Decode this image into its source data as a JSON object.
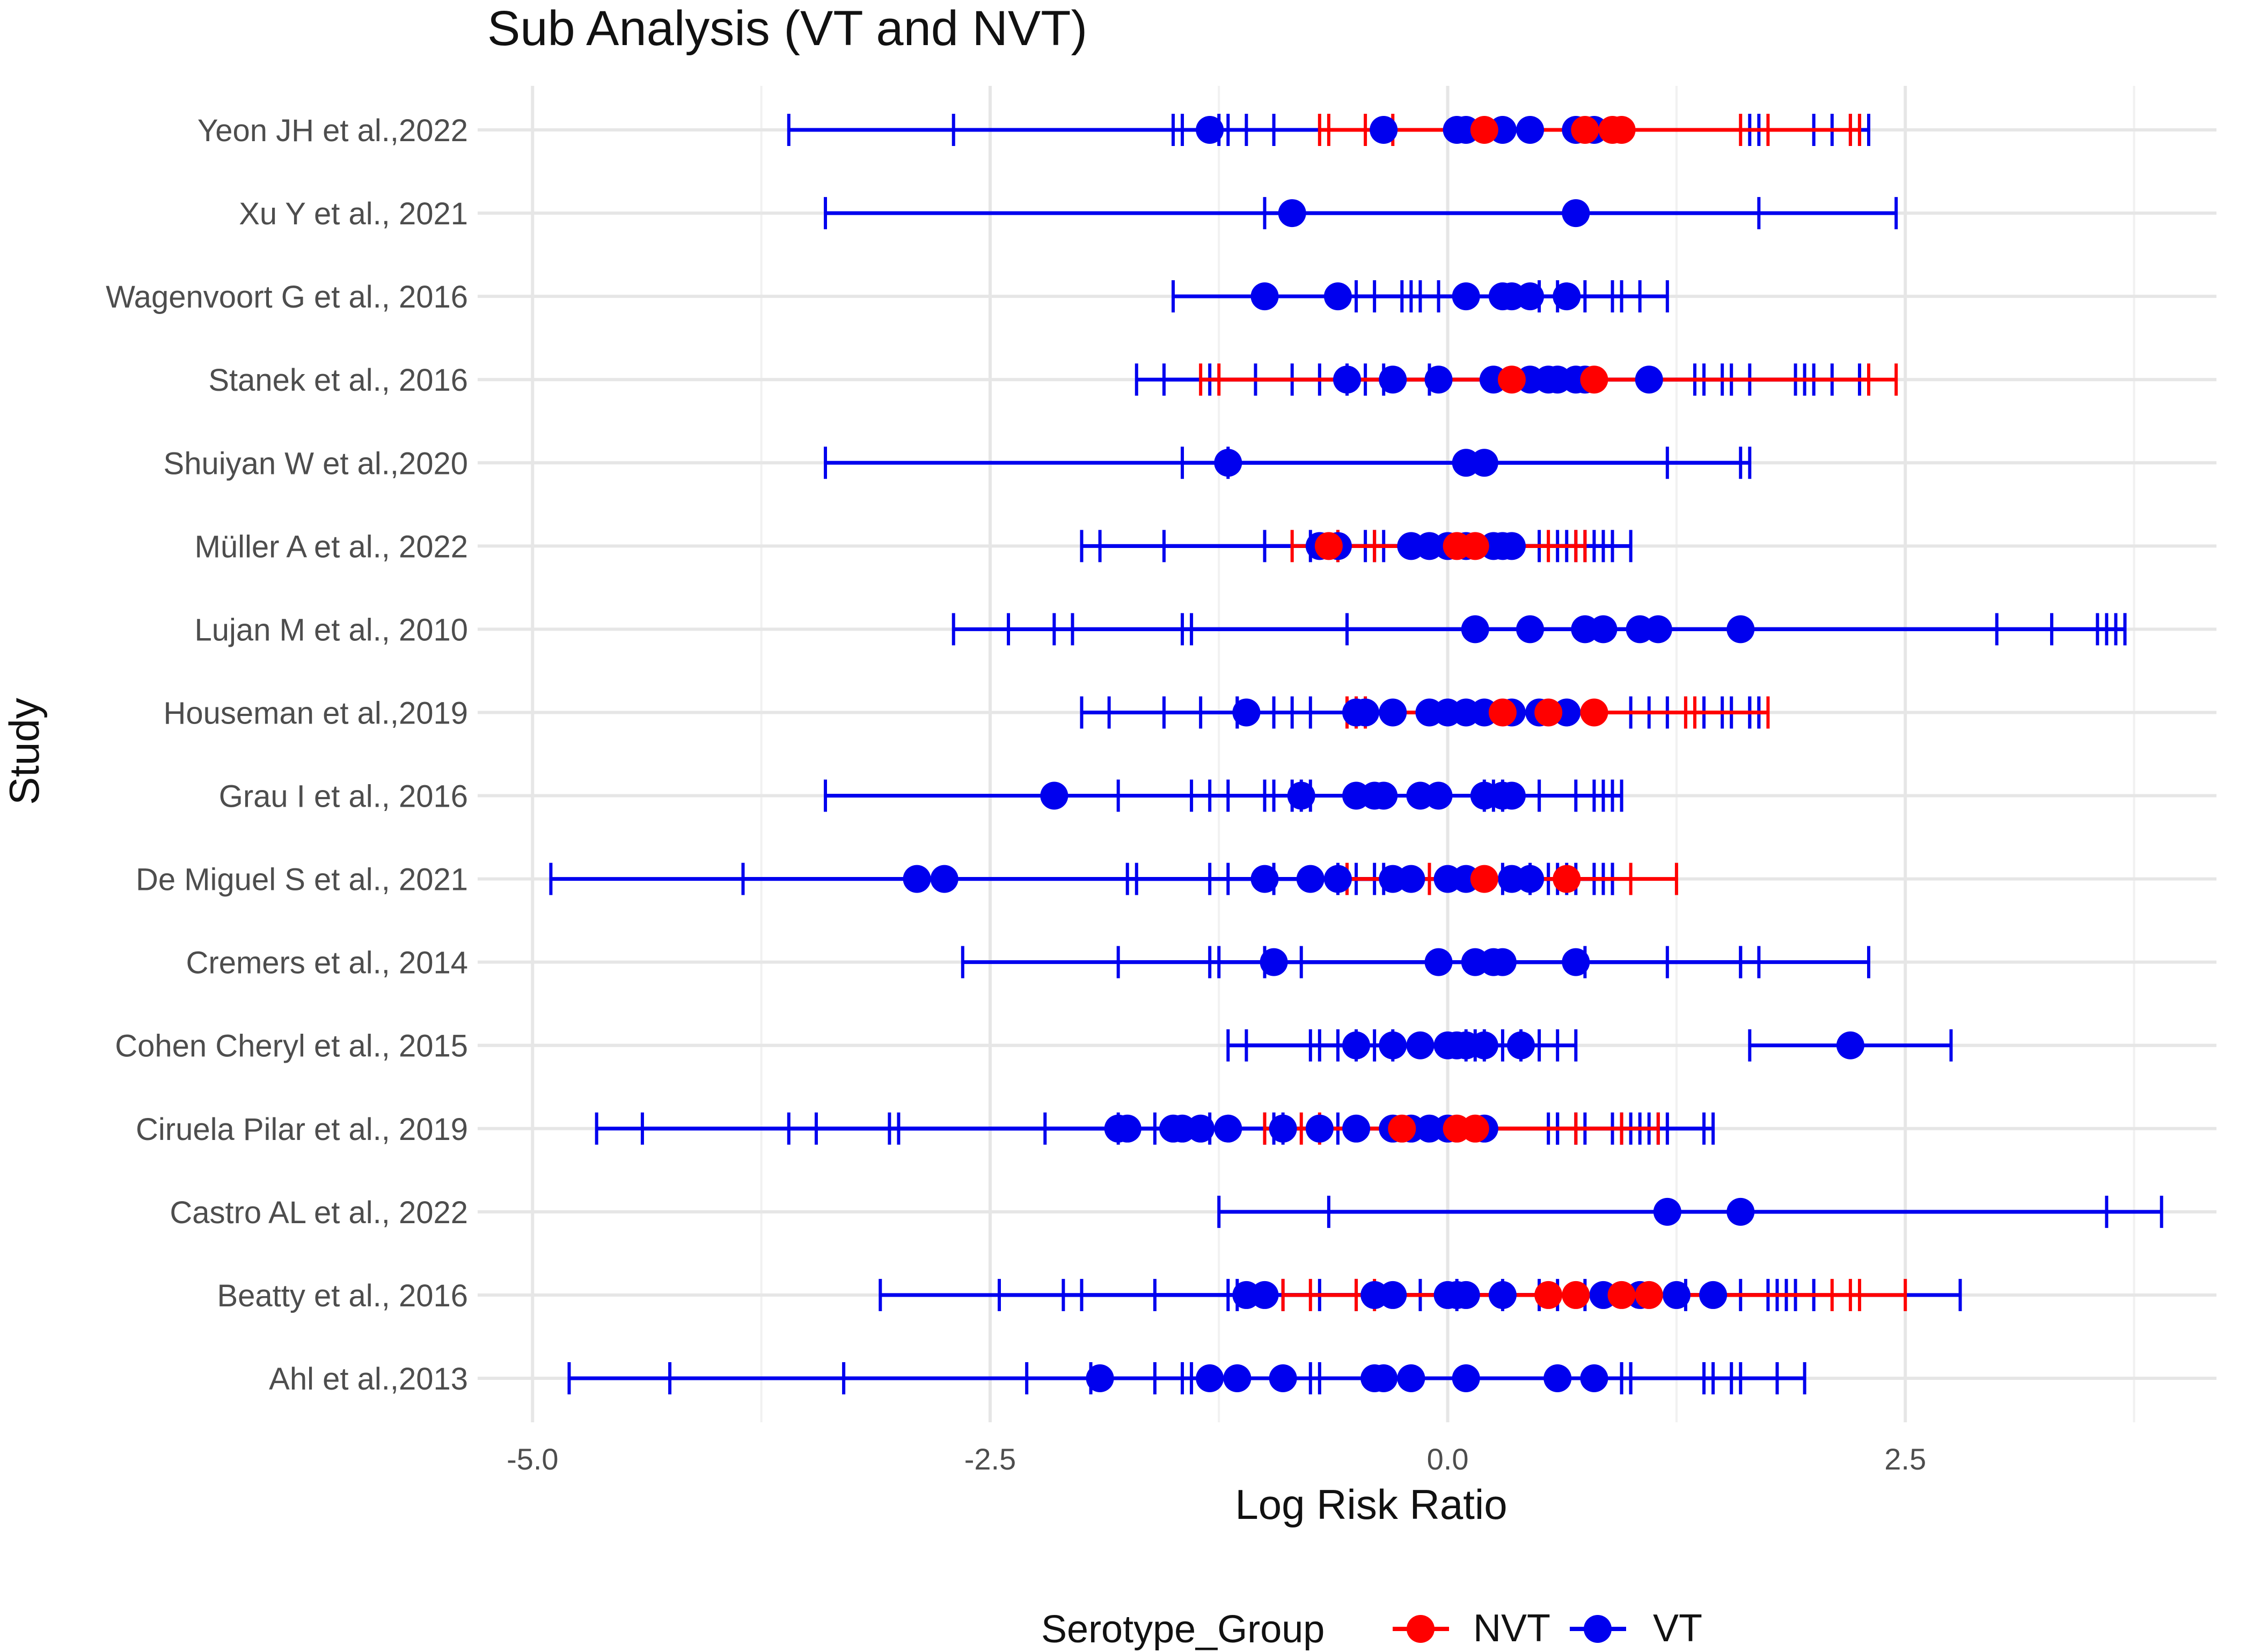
{
  "chart_data": {
    "type": "forest",
    "title": "Sub Analysis (VT and NVT)",
    "xlabel": "Log Risk Ratio",
    "ylabel": "Study",
    "xlim": [
      -5.3,
      4.2
    ],
    "x_ticks": [
      -5.0,
      -2.5,
      0.0,
      2.5
    ],
    "x_tick_labels": [
      "-5.0",
      "-2.5",
      "0.0",
      "2.5"
    ],
    "grid": true,
    "legend": {
      "title": "Serotype_Group",
      "position": "bottom",
      "entries": [
        {
          "label": "NVT",
          "color": "#ff0000"
        },
        {
          "label": "VT",
          "color": "#0000ee"
        }
      ]
    },
    "studies": [
      {
        "label": "Ahl et al.,2013",
        "VT": [
          [
            -1.9,
            -4.8,
            1.0
          ],
          [
            -1.3,
            -4.25,
            0.95
          ],
          [
            -1.15,
            -3.3,
            1.45
          ],
          [
            -0.9,
            -2.3,
            1.6
          ],
          [
            -0.4,
            -1.95,
            1.8
          ],
          [
            -0.35,
            -1.6,
            1.95
          ],
          [
            -0.2,
            -1.45,
            1.55
          ],
          [
            0.1,
            -1.4,
            1.4
          ],
          [
            0.6,
            -0.7,
            0.95
          ],
          [
            0.8,
            -0.75,
            1.0
          ]
        ]
      },
      {
        "label": "Beatty et al., 2016",
        "VT": [
          [
            -1.1,
            -3.1,
            0.5
          ],
          [
            -1.0,
            -2.45,
            0.3
          ],
          [
            -0.4,
            -2.1,
            0.6
          ],
          [
            -0.3,
            -2.0,
            0.75
          ],
          [
            0.0,
            -1.6,
            1.6
          ],
          [
            0.05,
            -1.2,
            1.75
          ],
          [
            0.1,
            -1.15,
            1.3
          ],
          [
            0.3,
            -0.9,
            1.8
          ],
          [
            0.85,
            -0.7,
            1.85
          ],
          [
            1.05,
            -0.5,
            1.9
          ],
          [
            1.25,
            -0.15,
            2.0
          ],
          [
            1.45,
            0.05,
            2.8
          ]
        ],
        "NVT": [
          [
            0.55,
            -0.75,
            2.5
          ],
          [
            0.7,
            -0.9,
            2.1
          ],
          [
            0.95,
            -0.5,
            2.25
          ],
          [
            1.1,
            -0.4,
            2.2
          ]
        ]
      },
      {
        "label": "Castro AL et al., 2022",
        "VT": [
          [
            1.2,
            -0.65,
            3.6
          ],
          [
            1.6,
            -1.25,
            3.9
          ]
        ]
      },
      {
        "label": "Ciruela Pilar et al., 2019",
        "VT": [
          [
            -1.8,
            -4.65,
            0.6
          ],
          [
            -1.75,
            -4.4,
            0.75
          ],
          [
            -1.5,
            -3.6,
            0.95
          ],
          [
            -1.45,
            -3.45,
            1.0
          ],
          [
            -1.35,
            -3.05,
            1.1
          ],
          [
            -1.2,
            -3.0,
            1.15
          ],
          [
            -0.9,
            -2.2,
            1.4
          ],
          [
            -0.7,
            -1.8,
            1.45
          ],
          [
            -0.5,
            -1.6,
            1.2
          ],
          [
            -0.3,
            -1.3,
            1.05
          ],
          [
            -0.2,
            -1.0,
            0.9
          ],
          [
            -0.1,
            -0.95,
            0.7
          ],
          [
            0.0,
            -0.9,
            0.6
          ],
          [
            0.2,
            -0.6,
            0.55
          ]
        ],
        "NVT": [
          [
            -0.25,
            -1.0,
            0.7
          ],
          [
            0.05,
            -0.8,
            0.95
          ],
          [
            0.15,
            -0.7,
            1.15
          ]
        ]
      },
      {
        "label": "Cohen Cheryl et al., 2015",
        "VT": [
          [
            -0.5,
            -1.2,
            0.1
          ],
          [
            -0.3,
            -1.1,
            0.15
          ],
          [
            -0.15,
            -0.75,
            0.2
          ],
          [
            0.0,
            -0.7,
            0.3
          ],
          [
            0.05,
            -0.6,
            0.4
          ],
          [
            0.1,
            -0.5,
            0.5
          ],
          [
            0.2,
            -0.4,
            0.6
          ],
          [
            0.4,
            -0.3,
            0.7
          ],
          [
            2.2,
            1.65,
            2.75
          ]
        ]
      },
      {
        "label": "Cremers et al., 2014",
        "VT": [
          [
            -0.95,
            -2.65,
            0.75
          ],
          [
            -0.05,
            -1.8,
            1.2
          ],
          [
            0.15,
            -1.3,
            1.6
          ],
          [
            0.25,
            -1.25,
            1.7
          ],
          [
            0.3,
            -1.0,
            2.3
          ],
          [
            0.7,
            -0.8,
            1.6
          ]
        ]
      },
      {
        "label": "De Miguel S et al., 2021",
        "VT": [
          [
            -2.9,
            -4.9,
            0.3
          ],
          [
            -2.75,
            -3.85,
            0.45
          ],
          [
            -1.0,
            -1.75,
            0.8
          ],
          [
            -0.75,
            -1.7,
            0.9
          ],
          [
            -0.6,
            -1.3,
            0.9
          ],
          [
            -0.3,
            -1.2,
            0.85
          ],
          [
            -0.2,
            -0.95,
            0.7
          ],
          [
            0.0,
            -0.6,
            0.55
          ],
          [
            0.1,
            -0.5,
            0.6
          ],
          [
            0.35,
            -0.4,
            0.65
          ],
          [
            0.45,
            -0.35,
            0.9
          ]
        ],
        "NVT": [
          [
            0.2,
            -0.55,
            1.25
          ],
          [
            0.65,
            -0.1,
            1.0
          ]
        ]
      },
      {
        "label": "Grau I et al., 2016",
        "VT": [
          [
            -2.15,
            -3.4,
            0.85
          ],
          [
            -0.8,
            -1.8,
            0.95
          ],
          [
            -0.5,
            -1.4,
            0.9
          ],
          [
            -0.4,
            -1.3,
            0.8
          ],
          [
            -0.35,
            -1.2,
            0.7
          ],
          [
            -0.15,
            -1.0,
            0.5
          ],
          [
            -0.05,
            -0.95,
            0.3
          ],
          [
            0.2,
            -0.85,
            0.25
          ],
          [
            0.3,
            -0.8,
            0.2
          ],
          [
            0.35,
            -0.75,
            0.5
          ]
        ]
      },
      {
        "label": "Houseman et al.,2019",
        "VT": [
          [
            -1.1,
            -2.0,
            1.0
          ],
          [
            -0.5,
            -1.85,
            1.1
          ],
          [
            -0.45,
            -1.55,
            1.2
          ],
          [
            -0.3,
            -1.35,
            1.3
          ],
          [
            -0.1,
            -1.15,
            1.4
          ],
          [
            0.0,
            -1.15,
            1.5
          ],
          [
            0.1,
            -0.95,
            1.55
          ],
          [
            0.2,
            -0.85,
            1.65
          ],
          [
            0.35,
            -0.75,
            1.7
          ],
          [
            0.5,
            -0.55,
            1.65
          ],
          [
            0.65,
            -0.5,
            1.7
          ]
        ],
        "NVT": [
          [
            0.3,
            -0.55,
            1.3
          ],
          [
            0.55,
            -0.5,
            1.35
          ],
          [
            0.8,
            -0.45,
            1.75
          ]
        ]
      },
      {
        "label": "Lujan M et al., 2010",
        "VT": [
          [
            0.15,
            -2.7,
            3.0
          ],
          [
            0.45,
            -2.4,
            3.3
          ],
          [
            0.75,
            -2.15,
            3.55
          ],
          [
            0.85,
            -2.05,
            3.6
          ],
          [
            1.05,
            -1.45,
            3.65
          ],
          [
            1.15,
            -1.4,
            3.7
          ],
          [
            1.6,
            -0.55,
            3.7
          ]
        ]
      },
      {
        "label": "Müller A et al., 2022",
        "VT": [
          [
            -0.7,
            -2.0,
            0.9
          ],
          [
            -0.6,
            -1.9,
            0.85
          ],
          [
            -0.2,
            -1.55,
            0.8
          ],
          [
            -0.1,
            -1.0,
            0.75
          ],
          [
            0.0,
            -0.75,
            0.7
          ],
          [
            0.1,
            -0.6,
            0.65
          ],
          [
            0.25,
            -0.45,
            0.6
          ],
          [
            0.3,
            -0.4,
            1.0
          ],
          [
            0.35,
            -0.35,
            0.5
          ]
        ],
        "NVT": [
          [
            -0.65,
            -0.85,
            0.55
          ],
          [
            0.05,
            -0.6,
            0.7
          ],
          [
            0.15,
            -0.4,
            0.75
          ]
        ]
      },
      {
        "label": "Shuiyan W et al.,2020",
        "VT": [
          [
            -1.2,
            -3.4,
            1.6
          ],
          [
            0.1,
            -1.45,
            1.2
          ],
          [
            0.2,
            -1.2,
            1.65
          ]
        ]
      },
      {
        "label": "Stanek et al., 2016",
        "VT": [
          [
            -0.55,
            -1.7,
            2.25
          ],
          [
            -0.3,
            -1.55,
            2.0
          ],
          [
            -0.05,
            -1.3,
            1.9
          ],
          [
            0.25,
            -1.05,
            2.1
          ],
          [
            0.45,
            -0.85,
            1.95
          ],
          [
            0.55,
            -0.7,
            1.65
          ],
          [
            0.6,
            -0.55,
            1.55
          ],
          [
            0.7,
            -0.45,
            1.5
          ],
          [
            0.75,
            -0.35,
            1.35
          ],
          [
            1.1,
            -0.1,
            1.4
          ]
        ],
        "NVT": [
          [
            0.35,
            -1.35,
            2.45
          ],
          [
            0.8,
            -1.25,
            2.3
          ]
        ]
      },
      {
        "label": "Wagenvoort G et al., 2016",
        "VT": [
          [
            -1.0,
            -1.5,
            1.2
          ],
          [
            -0.6,
            -0.5,
            1.05
          ],
          [
            0.1,
            -0.4,
            0.9
          ],
          [
            0.3,
            -0.25,
            0.95
          ],
          [
            0.35,
            -0.2,
            0.75
          ],
          [
            0.45,
            -0.15,
            0.6
          ],
          [
            0.65,
            -0.05,
            0.5
          ]
        ]
      },
      {
        "label": "Xu Y et al., 2021",
        "VT": [
          [
            -0.85,
            -3.4,
            1.7
          ],
          [
            0.7,
            -1.0,
            2.45
          ]
        ]
      },
      {
        "label": "Yeon JH et al.,2022",
        "VT": [
          [
            -1.3,
            -3.6,
            1.7
          ],
          [
            -0.35,
            -2.7,
            2.0
          ],
          [
            0.05,
            -1.5,
            2.1
          ],
          [
            0.1,
            -1.45,
            2.2
          ],
          [
            0.3,
            -1.25,
            2.25
          ],
          [
            0.45,
            -1.2,
            2.3
          ],
          [
            0.7,
            -1.1,
            2.3
          ],
          [
            0.8,
            -0.95,
            1.65
          ]
        ],
        "NVT": [
          [
            0.2,
            -0.7,
            2.2
          ],
          [
            0.75,
            -0.65,
            2.25
          ],
          [
            0.95,
            -0.45,
            1.75
          ],
          [
            0.9,
            -0.3,
            1.6
          ]
        ]
      }
    ]
  }
}
